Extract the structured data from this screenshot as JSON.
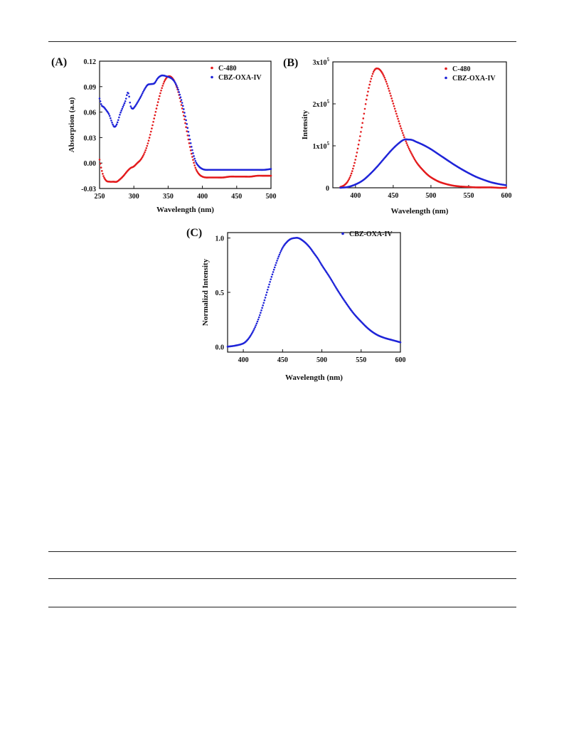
{
  "chart_data": [
    {
      "panel_label": "(A)",
      "type": "scatter",
      "xlabel": "Wavelength (nm)",
      "ylabel": "Absorption (a.u)",
      "xlim": [
        250,
        500
      ],
      "ylim": [
        -0.03,
        0.12
      ],
      "xticks": [
        250,
        300,
        350,
        400,
        450,
        500
      ],
      "xtick_labels": [
        "250",
        "300",
        "350",
        "400",
        "450",
        "500"
      ],
      "yticks": [
        -0.03,
        0.0,
        0.03,
        0.06,
        0.09,
        0.12
      ],
      "ytick_labels": [
        "-0.03",
        "0.00",
        "0.03",
        "0.06",
        "0.09",
        "0.12"
      ],
      "legend_position": "top-right",
      "series": [
        {
          "name": "C-480",
          "color": "#e31a1c",
          "x": [
            250,
            253,
            256,
            260,
            265,
            270,
            275,
            280,
            285,
            290,
            295,
            300,
            305,
            310,
            315,
            320,
            325,
            330,
            335,
            340,
            345,
            350,
            355,
            360,
            365,
            370,
            375,
            380,
            385,
            390,
            395,
            400,
            405,
            410,
            420,
            430,
            440,
            450,
            460,
            470,
            480,
            490,
            500
          ],
          "y": [
            0.004,
            -0.008,
            -0.016,
            -0.021,
            -0.022,
            -0.022,
            -0.022,
            -0.019,
            -0.015,
            -0.01,
            -0.006,
            -0.004,
            0.0,
            0.004,
            0.011,
            0.022,
            0.037,
            0.054,
            0.071,
            0.086,
            0.097,
            0.102,
            0.101,
            0.095,
            0.083,
            0.066,
            0.047,
            0.026,
            0.008,
            -0.006,
            -0.013,
            -0.016,
            -0.017,
            -0.017,
            -0.017,
            -0.017,
            -0.016,
            -0.016,
            -0.016,
            -0.016,
            -0.015,
            -0.015,
            -0.015
          ]
        },
        {
          "name": "CBZ-OXA-IV",
          "color": "#1f24d8",
          "x": [
            250,
            253,
            256,
            260,
            264,
            268,
            271,
            274,
            277,
            280,
            284,
            288,
            291,
            293,
            295,
            298,
            301,
            305,
            310,
            315,
            320,
            325,
            330,
            335,
            340,
            344,
            348,
            352,
            356,
            360,
            364,
            368,
            372,
            376,
            380,
            385,
            390,
            395,
            400,
            405,
            410,
            420,
            430,
            440,
            450,
            460,
            470,
            480,
            490,
            500
          ],
          "y": [
            0.076,
            0.068,
            0.066,
            0.062,
            0.057,
            0.048,
            0.043,
            0.044,
            0.05,
            0.058,
            0.066,
            0.074,
            0.083,
            0.079,
            0.068,
            0.064,
            0.066,
            0.071,
            0.078,
            0.086,
            0.092,
            0.093,
            0.094,
            0.1,
            0.103,
            0.103,
            0.102,
            0.101,
            0.099,
            0.095,
            0.088,
            0.078,
            0.066,
            0.051,
            0.035,
            0.016,
            0.002,
            -0.004,
            -0.007,
            -0.008,
            -0.008,
            -0.008,
            -0.008,
            -0.008,
            -0.008,
            -0.008,
            -0.008,
            -0.008,
            -0.008,
            -0.007
          ]
        }
      ]
    },
    {
      "panel_label": "(B)",
      "type": "scatter",
      "xlabel": "Wavelength (nm)",
      "ylabel": "Intensity",
      "xlim": [
        370,
        600
      ],
      "ylim": [
        0,
        3
      ],
      "xticks": [
        400,
        450,
        500,
        550,
        600
      ],
      "xtick_labels": [
        "400",
        "450",
        "500",
        "550",
        "600"
      ],
      "yticks": [
        0,
        1,
        2,
        3
      ],
      "ytick_labels": [
        "0",
        "1x10⁵",
        "2x10⁵",
        "3x10⁵"
      ],
      "legend_position": "top-right",
      "series": [
        {
          "name": "C-480",
          "color": "#e31a1c",
          "x": [
            380,
            385,
            390,
            395,
            400,
            405,
            410,
            415,
            420,
            425,
            430,
            435,
            440,
            445,
            450,
            455,
            460,
            465,
            470,
            475,
            480,
            485,
            490,
            495,
            500,
            510,
            520,
            530,
            540,
            550,
            560,
            570,
            580,
            590,
            600
          ],
          "y": [
            0.02,
            0.06,
            0.16,
            0.36,
            0.68,
            1.12,
            1.62,
            2.15,
            2.55,
            2.8,
            2.84,
            2.75,
            2.56,
            2.3,
            2.01,
            1.72,
            1.44,
            1.19,
            0.97,
            0.79,
            0.63,
            0.51,
            0.41,
            0.32,
            0.25,
            0.15,
            0.09,
            0.05,
            0.03,
            0.02,
            0.01,
            0.01,
            0.01,
            0.0,
            0.0
          ]
        },
        {
          "name": "CBZ-OXA-IV",
          "color": "#1f24d8",
          "x": [
            380,
            390,
            400,
            410,
            420,
            430,
            440,
            450,
            460,
            465,
            470,
            475,
            480,
            490,
            500,
            510,
            520,
            530,
            540,
            550,
            560,
            570,
            580,
            590,
            600
          ],
          "y": [
            0.0,
            0.02,
            0.08,
            0.18,
            0.34,
            0.53,
            0.74,
            0.94,
            1.1,
            1.15,
            1.15,
            1.14,
            1.1,
            1.02,
            0.92,
            0.8,
            0.68,
            0.56,
            0.45,
            0.35,
            0.26,
            0.19,
            0.13,
            0.09,
            0.06
          ]
        }
      ]
    },
    {
      "panel_label": "(C)",
      "type": "scatter",
      "xlabel": "Wavelength (nm)",
      "ylabel": "Normalizd Intensity",
      "xlim": [
        380,
        600
      ],
      "ylim": [
        -0.05,
        1.05
      ],
      "xticks": [
        400,
        450,
        500,
        550,
        600
      ],
      "xtick_labels": [
        "400",
        "450",
        "500",
        "550",
        "600"
      ],
      "yticks": [
        0.0,
        0.5,
        1.0
      ],
      "ytick_labels": [
        "0.0",
        "0.5",
        "1.0"
      ],
      "legend_position": "top-right",
      "series": [
        {
          "name": "CBZ-OXA-IV",
          "color": "#1f24d8",
          "x": [
            380,
            390,
            400,
            405,
            410,
            415,
            420,
            425,
            430,
            435,
            440,
            445,
            450,
            455,
            460,
            465,
            470,
            475,
            480,
            485,
            490,
            495,
            500,
            510,
            520,
            530,
            540,
            550,
            560,
            570,
            580,
            590,
            600
          ],
          "y": [
            0.0,
            0.01,
            0.03,
            0.06,
            0.11,
            0.18,
            0.27,
            0.38,
            0.5,
            0.62,
            0.73,
            0.83,
            0.91,
            0.96,
            0.99,
            1.0,
            1.0,
            0.98,
            0.95,
            0.91,
            0.86,
            0.81,
            0.75,
            0.64,
            0.52,
            0.41,
            0.31,
            0.23,
            0.16,
            0.11,
            0.08,
            0.06,
            0.04
          ]
        }
      ]
    }
  ]
}
